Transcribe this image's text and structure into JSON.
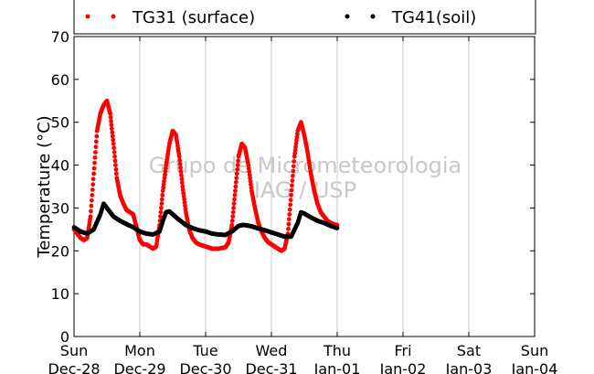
{
  "chart_data": {
    "type": "scatter",
    "ylabel": "Temperature (°C)",
    "ylim": [
      0,
      70
    ],
    "yticks": [
      0,
      10,
      20,
      30,
      40,
      50,
      60,
      70
    ],
    "xlim": [
      0,
      7
    ],
    "xticks": [
      {
        "day": 0,
        "line1": "Sun",
        "line2": "Dec-28"
      },
      {
        "day": 1,
        "line1": "Mon",
        "line2": "Dec-29"
      },
      {
        "day": 2,
        "line1": "Tue",
        "line2": "Dec-30"
      },
      {
        "day": 3,
        "line1": "Wed",
        "line2": "Dec-31"
      },
      {
        "day": 4,
        "line1": "Thu",
        "line2": "Jan-01"
      },
      {
        "day": 5,
        "line1": "Fri",
        "line2": "Jan-02"
      },
      {
        "day": 6,
        "line1": "Sat",
        "line2": "Jan-03"
      },
      {
        "day": 7,
        "line1": "Sun",
        "line2": "Jan-04"
      }
    ],
    "grid": "vertical",
    "legend_position": "top",
    "watermark": [
      "Grupo de Micrometeorologia",
      "IAG / USP"
    ],
    "series": [
      {
        "name": "TG31 (surface)",
        "color": "#ff0000",
        "points": [
          [
            0.0,
            25
          ],
          [
            0.05,
            24
          ],
          [
            0.1,
            23
          ],
          [
            0.15,
            22.5
          ],
          [
            0.2,
            23
          ],
          [
            0.25,
            28
          ],
          [
            0.3,
            38
          ],
          [
            0.35,
            48
          ],
          [
            0.4,
            52
          ],
          [
            0.45,
            54
          ],
          [
            0.5,
            55
          ],
          [
            0.55,
            52
          ],
          [
            0.6,
            45
          ],
          [
            0.65,
            37
          ],
          [
            0.7,
            33
          ],
          [
            0.75,
            31
          ],
          [
            0.8,
            29.5
          ],
          [
            0.9,
            28.5
          ],
          [
            1.0,
            22.5
          ],
          [
            1.05,
            21.5
          ],
          [
            1.1,
            21.5
          ],
          [
            1.15,
            21
          ],
          [
            1.2,
            20.5
          ],
          [
            1.25,
            21
          ],
          [
            1.3,
            26
          ],
          [
            1.35,
            34
          ],
          [
            1.4,
            40
          ],
          [
            1.45,
            45
          ],
          [
            1.5,
            48
          ],
          [
            1.55,
            47
          ],
          [
            1.6,
            42
          ],
          [
            1.65,
            35
          ],
          [
            1.7,
            29
          ],
          [
            1.75,
            25
          ],
          [
            1.8,
            23
          ],
          [
            1.85,
            22
          ],
          [
            1.9,
            21.5
          ],
          [
            2.0,
            21
          ],
          [
            2.1,
            20.5
          ],
          [
            2.2,
            20.5
          ],
          [
            2.3,
            20.8
          ],
          [
            2.35,
            22
          ],
          [
            2.4,
            26
          ],
          [
            2.45,
            34
          ],
          [
            2.5,
            42
          ],
          [
            2.55,
            45
          ],
          [
            2.6,
            44
          ],
          [
            2.65,
            40
          ],
          [
            2.7,
            34
          ],
          [
            2.75,
            30
          ],
          [
            2.8,
            26.5
          ],
          [
            2.85,
            24.5
          ],
          [
            2.9,
            23
          ],
          [
            2.95,
            22
          ],
          [
            3.0,
            21.5
          ],
          [
            3.05,
            21
          ],
          [
            3.1,
            20.5
          ],
          [
            3.15,
            20
          ],
          [
            3.2,
            20.5
          ],
          [
            3.25,
            24
          ],
          [
            3.3,
            33
          ],
          [
            3.35,
            42
          ],
          [
            3.4,
            48
          ],
          [
            3.45,
            50
          ],
          [
            3.5,
            47
          ],
          [
            3.55,
            43
          ],
          [
            3.6,
            38
          ],
          [
            3.65,
            34
          ],
          [
            3.7,
            31
          ],
          [
            3.75,
            29
          ],
          [
            3.8,
            28
          ],
          [
            3.85,
            27
          ],
          [
            3.9,
            26.5
          ],
          [
            3.95,
            26.2
          ],
          [
            4.0,
            26
          ]
        ]
      },
      {
        "name": "TG41(soil)",
        "color": "#000000",
        "points": [
          [
            0.0,
            25.5
          ],
          [
            0.1,
            24.5
          ],
          [
            0.2,
            24
          ],
          [
            0.3,
            25
          ],
          [
            0.4,
            28.5
          ],
          [
            0.45,
            31
          ],
          [
            0.5,
            30
          ],
          [
            0.6,
            28
          ],
          [
            0.7,
            27
          ],
          [
            0.8,
            26.2
          ],
          [
            0.9,
            25.5
          ],
          [
            1.0,
            24.5
          ],
          [
            1.1,
            24
          ],
          [
            1.2,
            23.8
          ],
          [
            1.3,
            24.5
          ],
          [
            1.35,
            27
          ],
          [
            1.4,
            29
          ],
          [
            1.45,
            29.2
          ],
          [
            1.5,
            28.5
          ],
          [
            1.6,
            27.2
          ],
          [
            1.7,
            26
          ],
          [
            1.8,
            25.3
          ],
          [
            1.9,
            24.8
          ],
          [
            2.0,
            24.5
          ],
          [
            2.1,
            24
          ],
          [
            2.2,
            23.8
          ],
          [
            2.3,
            23.7
          ],
          [
            2.4,
            24.5
          ],
          [
            2.5,
            25.8
          ],
          [
            2.55,
            26
          ],
          [
            2.6,
            26
          ],
          [
            2.7,
            25.7
          ],
          [
            2.8,
            25.2
          ],
          [
            2.9,
            24.8
          ],
          [
            3.0,
            24.3
          ],
          [
            3.1,
            23.8
          ],
          [
            3.2,
            23.3
          ],
          [
            3.3,
            23.3
          ],
          [
            3.4,
            26.5
          ],
          [
            3.45,
            29
          ],
          [
            3.5,
            28.7
          ],
          [
            3.6,
            27.8
          ],
          [
            3.7,
            27
          ],
          [
            3.8,
            26.5
          ],
          [
            3.9,
            25.8
          ],
          [
            4.0,
            25.3
          ]
        ]
      }
    ]
  }
}
